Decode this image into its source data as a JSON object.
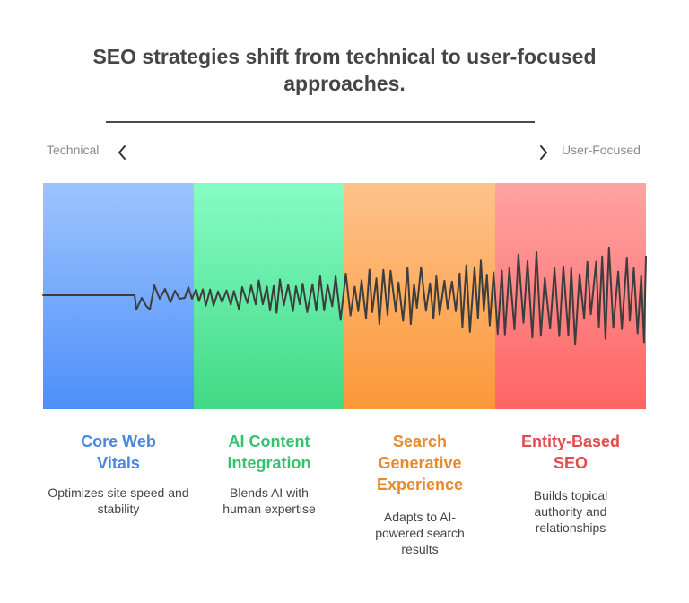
{
  "title": "SEO strategies shift from technical to user-focused approaches.",
  "axis": {
    "left_label": "Technical",
    "right_label": "User-Focused"
  },
  "stages": [
    {
      "title": "Core Web Vitals",
      "desc": "Optimizes site speed and stability",
      "color": "#4a86e0"
    },
    {
      "title": "AI Content Integration",
      "desc": "Blends AI with human expertise",
      "color": "#34c26f"
    },
    {
      "title": "Search Generative Experience",
      "desc": "Adapts to AI-powered search results",
      "color": "#e8892a"
    },
    {
      "title": "Entity-Based SEO",
      "desc": "Builds topical authority and relationships",
      "color": "#e04c4c"
    }
  ]
}
